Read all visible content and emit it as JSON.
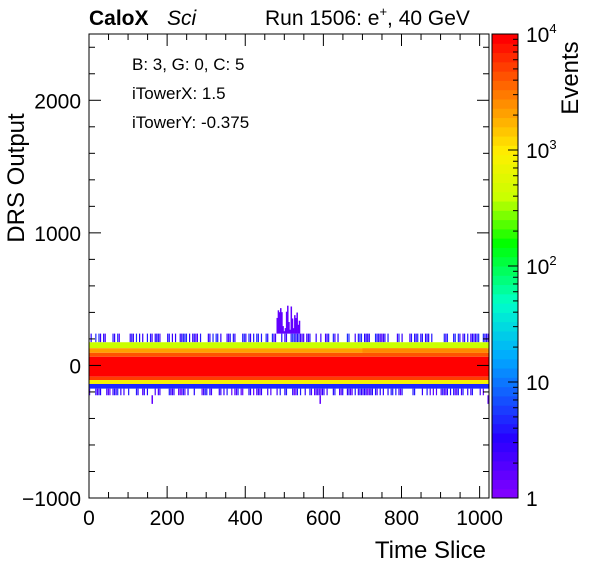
{
  "header": {
    "brand": "CaloX",
    "detector": "Sci",
    "run_prefix": "Run 1506: e",
    "run_sup": "+",
    "run_suffix": ", 40 GeV"
  },
  "info": {
    "line1": "B: 3, G: 0, C: 5",
    "line2": "iTowerX: 1.5",
    "line3": "iTowerY: -0.375"
  },
  "chart_data": {
    "type": "heatmap",
    "xlabel": "Time Slice",
    "ylabel": "DRS Output",
    "zlabel": "Events",
    "xlim": [
      0,
      1024
    ],
    "ylim": [
      -1000,
      2500
    ],
    "zlim": [
      1,
      10000
    ],
    "z_log": true,
    "x_ticks": [
      0,
      200,
      400,
      600,
      800,
      1000
    ],
    "x_tick_labels": [
      "0",
      "200",
      "400",
      "600",
      "800",
      "1000"
    ],
    "y_ticks": [
      -1000,
      0,
      1000,
      2000
    ],
    "y_tick_labels": [
      "−1000",
      "0",
      "1000",
      "2000"
    ],
    "z_ticks": [
      1,
      10,
      100,
      1000,
      10000
    ],
    "z_tick_labels": [
      {
        "base": "1",
        "exp": ""
      },
      {
        "base": "10",
        "exp": ""
      },
      {
        "base": "10",
        "exp": "2"
      },
      {
        "base": "10",
        "exp": "3"
      },
      {
        "base": "10",
        "exp": "4"
      }
    ],
    "bands": [
      {
        "y0": 175,
        "y1": 240,
        "level": 2
      },
      {
        "y0": 130,
        "y1": 175,
        "level": 400
      },
      {
        "y0": 95,
        "y1": 130,
        "level": 2000
      },
      {
        "y0": 65,
        "y1": 95,
        "level": 4000
      },
      {
        "y0": -85,
        "y1": 65,
        "level": 9000
      },
      {
        "y0": -110,
        "y1": -85,
        "level": 5000
      },
      {
        "y0": -140,
        "y1": -110,
        "level": 800
      },
      {
        "y0": -175,
        "y1": -140,
        "level": 5
      },
      {
        "y0": -225,
        "y1": -175,
        "level": 1.5
      }
    ],
    "spike": {
      "x_range": [
        480,
        540
      ],
      "y_max": 470
    }
  },
  "colors": {
    "frame": "#000000",
    "background": "#ffffff"
  }
}
